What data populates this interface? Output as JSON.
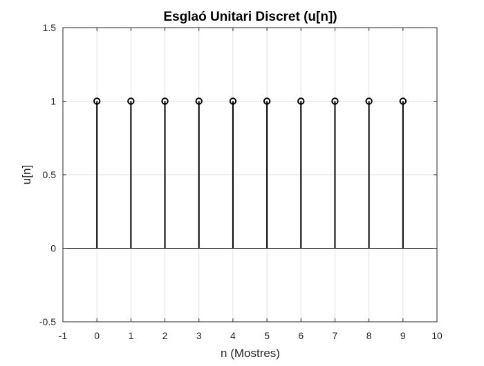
{
  "chart_data": {
    "type": "stem",
    "title": "Esglaó Unitari Discret (u[n])",
    "xlabel": "n (Mostres)",
    "ylabel": "u[n]",
    "xlim": [
      -1,
      10
    ],
    "ylim": [
      -0.5,
      1.5
    ],
    "xticks": [
      "-1",
      "0",
      "1",
      "2",
      "3",
      "4",
      "5",
      "6",
      "7",
      "8",
      "9",
      "10"
    ],
    "yticks": [
      "-0.5",
      "0",
      "0.5",
      "1",
      "1.5"
    ],
    "grid": true,
    "baseline": 0,
    "x": [
      0,
      1,
      2,
      3,
      4,
      5,
      6,
      7,
      8,
      9
    ],
    "values": [
      1,
      1,
      1,
      1,
      1,
      1,
      1,
      1,
      1,
      1
    ],
    "colors": {
      "stem": "#000000",
      "grid": "#dfdfdf",
      "axes": "#262626",
      "background": "#ffffff"
    }
  }
}
